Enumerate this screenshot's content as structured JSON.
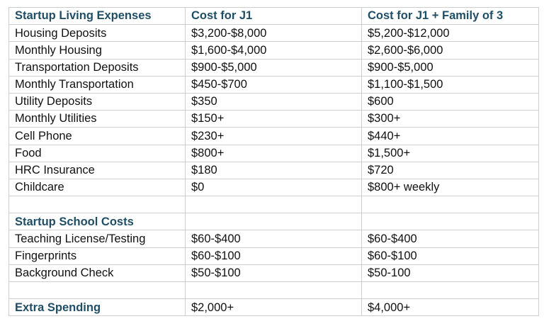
{
  "colors": {
    "heading": "#1f4e66",
    "border": "#cfcfcf"
  },
  "header": [
    "Startup Living Expenses",
    "Cost for J1",
    "Cost for J1 + Family of 3"
  ],
  "living_rows": [
    [
      "Housing Deposits",
      "$3,200-$8,000",
      "$5,200-$12,000"
    ],
    [
      "Monthly Housing",
      "$1,600-$4,000",
      "$2,600-$6,000"
    ],
    [
      "Transportation Deposits",
      "$900-$5,000",
      "$900-$5,000"
    ],
    [
      "Monthly Transportation",
      "$450-$700",
      "$1,100-$1,500"
    ],
    [
      "Utility Deposits",
      "$350",
      "$600"
    ],
    [
      "Monthly Utilities",
      "$150+",
      "$300+"
    ],
    [
      "Cell Phone",
      "$230+",
      "$440+"
    ],
    [
      "Food",
      "$800+",
      "$1,500+"
    ],
    [
      "HRC Insurance",
      "$180",
      "$720"
    ],
    [
      "Childcare",
      "$0",
      "$800+ weekly"
    ]
  ],
  "school_heading": "Startup School Costs",
  "school_rows": [
    [
      "Teaching License/Testing",
      "$60-$400",
      "$60-$400"
    ],
    [
      "Fingerprints",
      "$60-$100",
      "$60-$100"
    ],
    [
      "Background Check",
      "$50-$100",
      "$50-100"
    ]
  ],
  "extra": [
    "Extra Spending",
    "$2,000+",
    "$4,000+"
  ]
}
